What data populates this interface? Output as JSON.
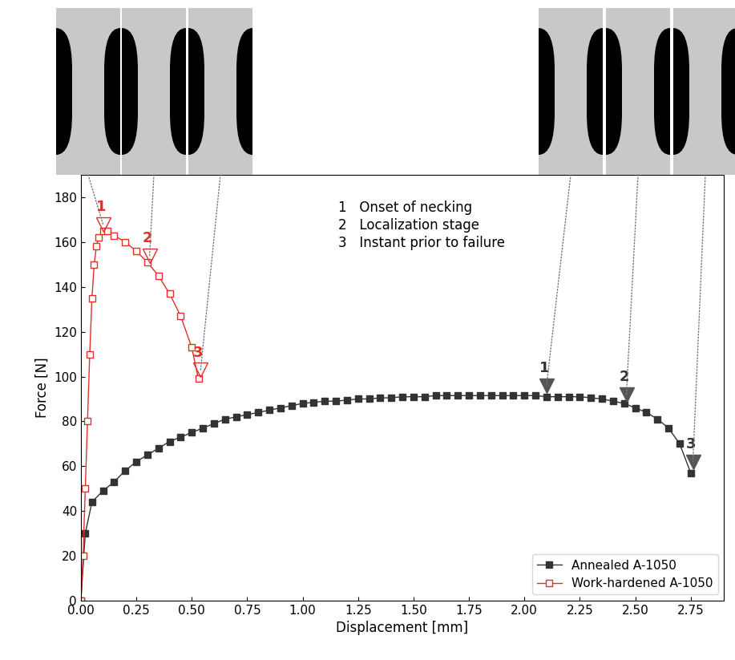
{
  "chart_data": {
    "type": "line",
    "x_label": "Displacement [mm]",
    "y_label": "Force [N]",
    "xlim": [
      0,
      2.9
    ],
    "ylim": [
      0,
      190
    ],
    "xticks": [
      {
        "value": 0,
        "label": "0.00"
      },
      {
        "value": 0.25,
        "label": "0.25"
      },
      {
        "value": 0.5,
        "label": "0.50"
      },
      {
        "value": 0.75,
        "label": "0.75"
      },
      {
        "value": 1.0,
        "label": "1.00"
      },
      {
        "value": 1.25,
        "label": "1.25"
      },
      {
        "value": 1.5,
        "label": "1.50"
      },
      {
        "value": 1.75,
        "label": "1.75"
      },
      {
        "value": 2.0,
        "label": "2.00"
      },
      {
        "value": 2.25,
        "label": "2.25"
      },
      {
        "value": 2.5,
        "label": "2.50"
      },
      {
        "value": 2.75,
        "label": "2.75"
      }
    ],
    "yticks": [
      0,
      20,
      40,
      60,
      80,
      100,
      120,
      140,
      160,
      180
    ],
    "legend": "lower right",
    "series": [
      {
        "name": "Annealed A-1050",
        "color": "#333333",
        "marker": "square",
        "line_style": "solid",
        "x": [
          0,
          0.02,
          0.05,
          0.1,
          0.15,
          0.2,
          0.25,
          0.3,
          0.35,
          0.4,
          0.45,
          0.5,
          0.55,
          0.6,
          0.65,
          0.7,
          0.75,
          0.8,
          0.85,
          0.9,
          0.95,
          1.0,
          1.05,
          1.1,
          1.15,
          1.2,
          1.25,
          1.3,
          1.35,
          1.4,
          1.45,
          1.5,
          1.55,
          1.6,
          1.65,
          1.7,
          1.75,
          1.8,
          1.85,
          1.9,
          1.95,
          2.0,
          2.05,
          2.1,
          2.15,
          2.2,
          2.25,
          2.3,
          2.35,
          2.4,
          2.45,
          2.5,
          2.55,
          2.6,
          2.65,
          2.7,
          2.75
        ],
        "values": [
          0,
          30,
          44,
          49,
          53,
          58,
          62,
          65,
          68,
          71,
          73,
          75,
          77,
          79,
          81,
          82,
          83,
          84,
          85,
          86,
          87,
          88,
          88.5,
          89,
          89,
          89.5,
          90,
          90,
          90.5,
          90.5,
          91,
          91,
          91,
          91.5,
          91.5,
          91.5,
          91.5,
          91.5,
          91.5,
          91.5,
          91.5,
          91.5,
          91.5,
          91,
          91,
          91,
          91,
          90.5,
          90,
          89,
          88,
          86,
          84,
          81,
          77,
          70,
          57
        ]
      },
      {
        "name": "Work-hardened A-1050",
        "color": "#e0302a",
        "marker": "hollow_square",
        "line_style": "solid",
        "x": [
          0,
          0.01,
          0.02,
          0.03,
          0.04,
          0.05,
          0.06,
          0.07,
          0.08,
          0.1,
          0.12,
          0.15,
          0.2,
          0.25,
          0.3,
          0.35,
          0.4,
          0.45,
          0.5,
          0.53
        ],
        "values": [
          0,
          20,
          50,
          80,
          110,
          135,
          150,
          158,
          162,
          165,
          165,
          163,
          160,
          156,
          151,
          145,
          137,
          127,
          113,
          99
        ]
      }
    ],
    "notes": [
      {
        "label": "1",
        "text": "Onset of necking"
      },
      {
        "label": "2",
        "text": "Localization stage"
      },
      {
        "label": "3",
        "text": "Instant prior to failure"
      }
    ],
    "annotations": [
      {
        "series": "Work-hardened A-1050",
        "label": "1",
        "x": 0.1,
        "y": 168
      },
      {
        "series": "Work-hardened A-1050",
        "label": "2",
        "x": 0.31,
        "y": 154
      },
      {
        "series": "Work-hardened A-1050",
        "label": "3",
        "x": 0.54,
        "y": 103
      },
      {
        "series": "Annealed A-1050",
        "label": "1",
        "x": 2.1,
        "y": 96
      },
      {
        "series": "Annealed A-1050",
        "label": "2",
        "x": 2.46,
        "y": 92
      },
      {
        "series": "Annealed A-1050",
        "label": "3",
        "x": 2.76,
        "y": 62
      }
    ]
  }
}
